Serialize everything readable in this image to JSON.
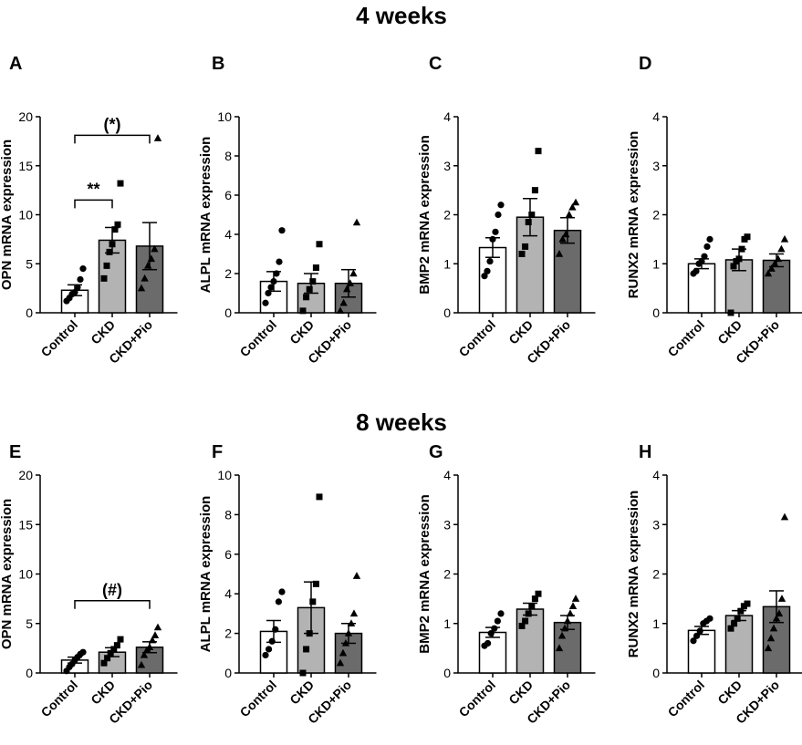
{
  "section_titles": [
    "4 weeks",
    "8 weeks"
  ],
  "colors": {
    "Control": "#ffffff",
    "CKD": "#b3b3b3",
    "CKD+Pio": "#6b6b6b",
    "stroke": "#000000"
  },
  "chart_data": [
    {
      "panel": "A",
      "type": "bar",
      "section": "4 weeks",
      "ylabel": "OPN mRNA expression",
      "ylim": [
        0,
        20
      ],
      "yticks": [
        0,
        5,
        10,
        15,
        20
      ],
      "categories": [
        "Control",
        "CKD",
        "CKD+Pio"
      ],
      "values": [
        2.3,
        7.4,
        6.8
      ],
      "sem": [
        0.55,
        1.3,
        2.4
      ],
      "points": [
        [
          1.2,
          1.5,
          1.9,
          2.1,
          2.6,
          3.4,
          4.5
        ],
        [
          3.5,
          4.8,
          6.2,
          7.0,
          8.5,
          9.0,
          13.2
        ],
        [
          2.5,
          3.5,
          4.8,
          5.5,
          6.5,
          17.8
        ]
      ],
      "markers": [
        "circle",
        "square",
        "triangle"
      ],
      "significance": [
        {
          "pair": [
            0,
            1
          ],
          "label": "**",
          "y": 11.5
        },
        {
          "pair": [
            0,
            2
          ],
          "label": "(*)",
          "y": 18.1
        }
      ]
    },
    {
      "panel": "B",
      "type": "bar",
      "section": "4 weeks",
      "ylabel": "ALPL mRNA expression",
      "ylim": [
        0,
        10
      ],
      "yticks": [
        0,
        2,
        4,
        6,
        8,
        10
      ],
      "categories": [
        "Control",
        "CKD",
        "CKD+Pio"
      ],
      "values": [
        1.6,
        1.5,
        1.5
      ],
      "sem": [
        0.5,
        0.5,
        0.7
      ],
      "points": [
        [
          0.5,
          1.0,
          1.3,
          1.6,
          2.0,
          2.6,
          4.2
        ],
        [
          0.1,
          0.8,
          1.2,
          1.6,
          2.3,
          3.5
        ],
        [
          0.1,
          0.5,
          1.2,
          1.5,
          2.0,
          4.6
        ]
      ],
      "markers": [
        "circle",
        "square",
        "triangle"
      ],
      "significance": []
    },
    {
      "panel": "C",
      "type": "bar",
      "section": "4 weeks",
      "ylabel": "BMP2 mRNA expression",
      "ylim": [
        0,
        4
      ],
      "yticks": [
        0,
        1,
        2,
        3,
        4
      ],
      "categories": [
        "Control",
        "CKD",
        "CKD+Pio"
      ],
      "values": [
        1.33,
        1.95,
        1.68
      ],
      "sem": [
        0.2,
        0.38,
        0.26
      ],
      "points": [
        [
          0.75,
          0.85,
          1.05,
          1.5,
          1.65,
          2.0,
          2.2
        ],
        [
          1.2,
          1.35,
          1.85,
          2.0,
          2.5,
          3.3
        ],
        [
          1.2,
          1.5,
          1.6,
          2.0,
          2.15,
          2.25
        ]
      ],
      "markers": [
        "circle",
        "square",
        "triangle"
      ],
      "significance": []
    },
    {
      "panel": "D",
      "type": "bar",
      "section": "4 weeks",
      "ylabel": "RUNX2 mRNA expression",
      "ylim": [
        0,
        4
      ],
      "yticks": [
        0,
        1,
        2,
        3,
        4
      ],
      "categories": [
        "Control",
        "CKD",
        "CKD+Pio"
      ],
      "values": [
        1.0,
        1.08,
        1.07
      ],
      "sem": [
        0.1,
        0.22,
        0.13
      ],
      "points": [
        [
          0.8,
          0.85,
          1.0,
          1.05,
          1.15,
          1.35,
          1.5
        ],
        [
          0.0,
          0.95,
          1.05,
          1.1,
          1.3,
          1.5,
          1.55
        ],
        [
          0.8,
          0.9,
          1.0,
          1.1,
          1.3,
          1.5
        ]
      ],
      "markers": [
        "circle",
        "square",
        "triangle"
      ],
      "significance": []
    },
    {
      "panel": "E",
      "type": "bar",
      "section": "8 weeks",
      "ylabel": "OPN mRNA expression",
      "ylim": [
        0,
        20
      ],
      "yticks": [
        0,
        5,
        10,
        15,
        20
      ],
      "categories": [
        "Control",
        "CKD",
        "CKD+Pio"
      ],
      "values": [
        1.3,
        2.1,
        2.6
      ],
      "sem": [
        0.3,
        0.45,
        0.55
      ],
      "points": [
        [
          0.2,
          0.6,
          0.9,
          1.3,
          1.6,
          1.9,
          2.1
        ],
        [
          1.0,
          1.5,
          2.0,
          2.4,
          2.8,
          3.4
        ],
        [
          0.8,
          1.8,
          2.3,
          2.6,
          3.3,
          3.8,
          4.6
        ]
      ],
      "markers": [
        "circle",
        "square",
        "triangle"
      ],
      "significance": [
        {
          "pair": [
            0,
            2
          ],
          "label": "(#)",
          "y": 7.3
        }
      ]
    },
    {
      "panel": "F",
      "type": "bar",
      "section": "8 weeks",
      "ylabel": "ALPL mRNA expression",
      "ylim": [
        0,
        10
      ],
      "yticks": [
        0,
        2,
        4,
        6,
        8,
        10
      ],
      "categories": [
        "Control",
        "CKD",
        "CKD+Pio"
      ],
      "values": [
        2.1,
        3.3,
        2.0
      ],
      "sem": [
        0.55,
        1.3,
        0.5
      ],
      "points": [
        [
          0.9,
          1.2,
          1.6,
          2.2,
          3.6,
          4.1
        ],
        [
          0.0,
          1.2,
          2.0,
          3.6,
          4.5,
          8.9
        ],
        [
          0.5,
          1.0,
          1.5,
          2.0,
          2.5,
          3.0,
          4.9
        ]
      ],
      "markers": [
        "circle",
        "square",
        "triangle"
      ],
      "significance": []
    },
    {
      "panel": "G",
      "type": "bar",
      "section": "8 weeks",
      "ylabel": "BMP2 mRNA expression",
      "ylim": [
        0,
        4
      ],
      "yticks": [
        0,
        1,
        2,
        3,
        4
      ],
      "categories": [
        "Control",
        "CKD",
        "CKD+Pio"
      ],
      "values": [
        0.82,
        1.29,
        1.02
      ],
      "sem": [
        0.1,
        0.12,
        0.14
      ],
      "points": [
        [
          0.55,
          0.6,
          0.8,
          0.9,
          1.05,
          1.2
        ],
        [
          0.95,
          1.05,
          1.2,
          1.35,
          1.5,
          1.6
        ],
        [
          0.5,
          0.75,
          0.9,
          1.05,
          1.2,
          1.35,
          1.5
        ]
      ],
      "markers": [
        "circle",
        "square",
        "triangle"
      ],
      "significance": []
    },
    {
      "panel": "H",
      "type": "bar",
      "section": "8 weeks",
      "ylabel": "RUNX2 mRNA expression",
      "ylim": [
        0,
        4
      ],
      "yticks": [
        0,
        1,
        2,
        3,
        4
      ],
      "categories": [
        "Control",
        "CKD",
        "CKD+Pio"
      ],
      "values": [
        0.86,
        1.16,
        1.34
      ],
      "sem": [
        0.08,
        0.1,
        0.32
      ],
      "points": [
        [
          0.65,
          0.75,
          0.85,
          1.0,
          1.05,
          1.1
        ],
        [
          0.9,
          1.0,
          1.1,
          1.25,
          1.35,
          1.4
        ],
        [
          0.5,
          0.7,
          0.9,
          1.1,
          1.2,
          1.5,
          3.15
        ]
      ],
      "markers": [
        "circle",
        "square",
        "triangle"
      ],
      "significance": []
    }
  ]
}
